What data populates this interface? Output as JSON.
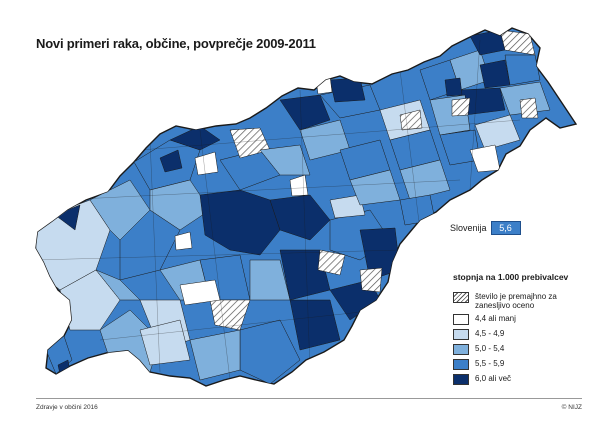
{
  "title": "Novi primeri raka, občine, povprečje 2009-2011",
  "country_label": "Slovenija",
  "country_value": "5,6",
  "legend": {
    "title": "stopnja na 1.000 prebivalcev",
    "items": [
      {
        "label": "število je premajhno za zanesljivo oceno",
        "color": "hatch"
      },
      {
        "label": "4,4 ali manj",
        "color": "#ffffff"
      },
      {
        "label": "4,5 - 4,9",
        "color": "#c6dbef"
      },
      {
        "label": "5,0 - 5,4",
        "color": "#7fb0dc"
      },
      {
        "label": "5,5 - 5,9",
        "color": "#3c7fc8"
      },
      {
        "label": "6,0 ali več",
        "color": "#0b2f6b"
      }
    ]
  },
  "footer": {
    "source": "Zdravje v občini 2016",
    "copyright": "© NIJZ"
  }
}
